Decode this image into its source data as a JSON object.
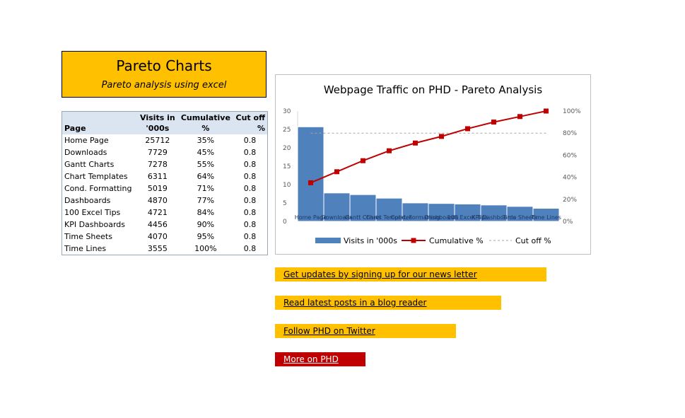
{
  "header": {
    "title": "Pareto Charts",
    "subtitle": "Pareto analysis using excel"
  },
  "table": {
    "headers": {
      "page": "Page",
      "visits_line1": "Visits in",
      "visits_line2": "'000s",
      "cumulative_line1": "Cumulative",
      "cumulative_line2": "%",
      "cutoff": "Cut off %"
    },
    "rows": [
      {
        "page": "Home Page",
        "visits": "25712",
        "cumulative": "35%",
        "cutoff": "0.8"
      },
      {
        "page": "Downloads",
        "visits": "7729",
        "cumulative": "45%",
        "cutoff": "0.8"
      },
      {
        "page": "Gantt Charts",
        "visits": "7278",
        "cumulative": "55%",
        "cutoff": "0.8"
      },
      {
        "page": "Chart Templates",
        "visits": "6311",
        "cumulative": "64%",
        "cutoff": "0.8"
      },
      {
        "page": "Cond. Formatting",
        "visits": "5019",
        "cumulative": "71%",
        "cutoff": "0.8"
      },
      {
        "page": "Dashboards",
        "visits": "4870",
        "cumulative": "77%",
        "cutoff": "0.8"
      },
      {
        "page": "100 Excel Tips",
        "visits": "4721",
        "cumulative": "84%",
        "cutoff": "0.8"
      },
      {
        "page": "KPI Dashboards",
        "visits": "4456",
        "cumulative": "90%",
        "cutoff": "0.8"
      },
      {
        "page": "Time Sheets",
        "visits": "4070",
        "cumulative": "95%",
        "cutoff": "0.8"
      },
      {
        "page": "Time Lines",
        "visits": "3555",
        "cumulative": "100%",
        "cutoff": "0.8"
      }
    ]
  },
  "chart_data": {
    "type": "bar",
    "title": "Webpage Traffic on PHD - Pareto Analysis",
    "categories": [
      "Home Page",
      "Downloads",
      "Gantt Charts",
      "Chart Templates",
      "Cond. Formatting",
      "Dashboards",
      "100 Excel Tips",
      "KPI Dashboards",
      "Time Sheets",
      "Time Lines"
    ],
    "series": [
      {
        "name": "Visits in '000s",
        "type": "bar",
        "axis": "left",
        "values": [
          25.712,
          7.729,
          7.278,
          6.311,
          5.019,
          4.87,
          4.721,
          4.456,
          4.07,
          3.555
        ]
      },
      {
        "name": "Cumulative %",
        "type": "line",
        "axis": "right",
        "values": [
          0.35,
          0.45,
          0.55,
          0.64,
          0.71,
          0.77,
          0.84,
          0.9,
          0.95,
          1.0
        ]
      },
      {
        "name": "Cut off %",
        "type": "line-dashed",
        "axis": "right",
        "values": [
          0.8,
          0.8,
          0.8,
          0.8,
          0.8,
          0.8,
          0.8,
          0.8,
          0.8,
          0.8
        ]
      }
    ],
    "ylim": [
      0,
      30
    ],
    "yticks": [
      "0",
      "5",
      "10",
      "15",
      "20",
      "25",
      "30"
    ],
    "y2lim": [
      0,
      1
    ],
    "y2ticks": [
      "0%",
      "20%",
      "40%",
      "60%",
      "80%",
      "100%"
    ],
    "legend_position": "bottom",
    "grid": false,
    "colors": {
      "bars": "#4f81bd",
      "cumulative": "#c00000",
      "cutoff": "#a6a6a6"
    }
  },
  "links": [
    {
      "label": "Get updates by signing up for our news letter",
      "style": "yellow"
    },
    {
      "label": "Read latest posts in a blog reader",
      "style": "yellow"
    },
    {
      "label": "Follow PHD on Twitter",
      "style": "yellow"
    },
    {
      "label": "More on PHD",
      "style": "red"
    }
  ]
}
